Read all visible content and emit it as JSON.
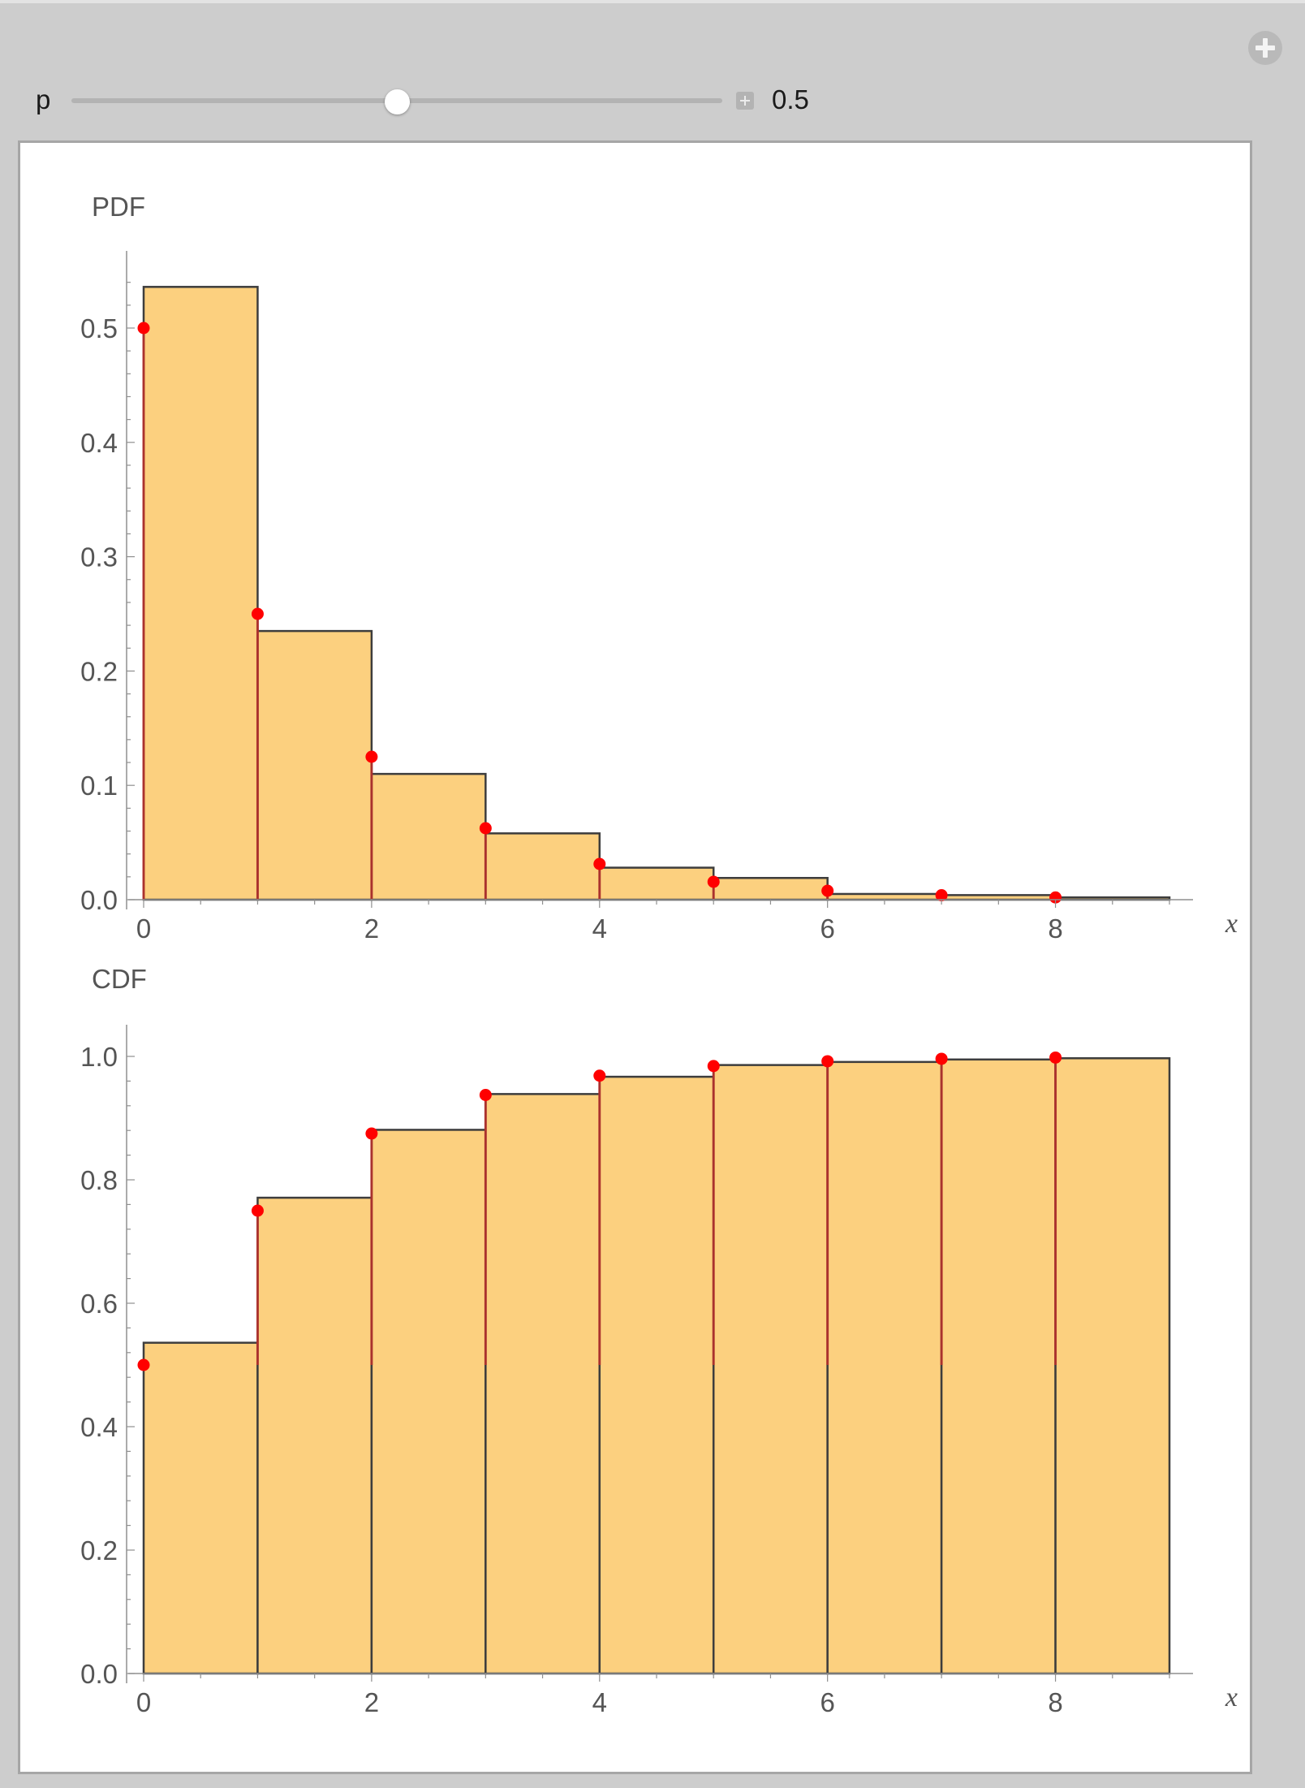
{
  "controls": {
    "parameter_label": "p",
    "parameter_value": "0.5",
    "slider": {
      "min": 0,
      "max": 1,
      "value": 0.5
    }
  },
  "colors": {
    "bar_fill": "#fcd07f",
    "bar_stroke": "#3d3d3d",
    "point": "#ff0000",
    "stem": "#c4302b",
    "axis": "#8f8f8f",
    "window": "#cdcdcd",
    "panel": "#ffffff"
  },
  "icons": {
    "options": "plus-circle-icon",
    "expand": "plus-square-icon"
  },
  "chart_data": [
    {
      "type": "bar",
      "title": "PDF",
      "xlabel": "x",
      "ylabel": "",
      "xlim": [
        0,
        9
      ],
      "ylim": [
        0,
        0.55
      ],
      "xticks": [
        0,
        2,
        4,
        6,
        8
      ],
      "yticks": [
        0.0,
        0.1,
        0.2,
        0.3,
        0.4,
        0.5
      ],
      "ytick_labels": [
        "0.0",
        "0.1",
        "0.2",
        "0.3",
        "0.4",
        "0.5"
      ],
      "bars": [
        {
          "x0": 0,
          "x1": 1,
          "value": 0.536
        },
        {
          "x0": 1,
          "x1": 2,
          "value": 0.235
        },
        {
          "x0": 2,
          "x1": 3,
          "value": 0.11
        },
        {
          "x0": 3,
          "x1": 4,
          "value": 0.058
        },
        {
          "x0": 4,
          "x1": 5,
          "value": 0.028
        },
        {
          "x0": 5,
          "x1": 6,
          "value": 0.019
        },
        {
          "x0": 6,
          "x1": 7,
          "value": 0.005
        },
        {
          "x0": 7,
          "x1": 8,
          "value": 0.004
        },
        {
          "x0": 8,
          "x1": 9,
          "value": 0.002
        }
      ],
      "points": {
        "x": [
          0,
          1,
          2,
          3,
          4,
          5,
          6,
          7,
          8
        ],
        "y": [
          0.5,
          0.25,
          0.125,
          0.0625,
          0.03125,
          0.015625,
          0.0078125,
          0.00390625,
          0.001953125
        ]
      },
      "stem_base": 0
    },
    {
      "type": "bar",
      "title": "CDF",
      "xlabel": "x",
      "ylabel": "",
      "xlim": [
        0,
        9
      ],
      "ylim": [
        0,
        1.02
      ],
      "xticks": [
        0,
        2,
        4,
        6,
        8
      ],
      "yticks": [
        0.0,
        0.2,
        0.4,
        0.6,
        0.8,
        1.0
      ],
      "ytick_labels": [
        "0.0",
        "0.2",
        "0.4",
        "0.6",
        "0.8",
        "1.0"
      ],
      "bars": [
        {
          "x0": 0,
          "x1": 1,
          "value": 0.536
        },
        {
          "x0": 1,
          "x1": 2,
          "value": 0.771
        },
        {
          "x0": 2,
          "x1": 3,
          "value": 0.881
        },
        {
          "x0": 3,
          "x1": 4,
          "value": 0.939
        },
        {
          "x0": 4,
          "x1": 5,
          "value": 0.967
        },
        {
          "x0": 5,
          "x1": 6,
          "value": 0.986
        },
        {
          "x0": 6,
          "x1": 7,
          "value": 0.991
        },
        {
          "x0": 7,
          "x1": 8,
          "value": 0.995
        },
        {
          "x0": 8,
          "x1": 9,
          "value": 0.997
        }
      ],
      "points": {
        "x": [
          0,
          1,
          2,
          3,
          4,
          5,
          6,
          7,
          8
        ],
        "y": [
          0.5,
          0.75,
          0.875,
          0.9375,
          0.96875,
          0.984375,
          0.9921875,
          0.99609375,
          0.998046875
        ]
      },
      "stem_base": 0.5
    }
  ]
}
